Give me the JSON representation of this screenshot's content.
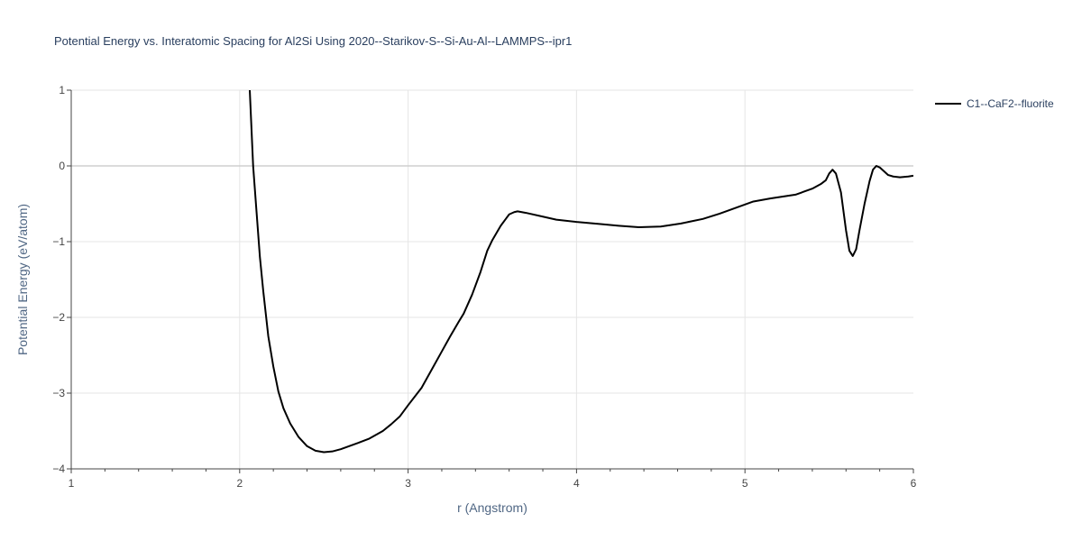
{
  "chart_data": {
    "type": "line",
    "title": "Potential Energy vs. Interatomic Spacing for Al2Si Using 2020--Starikov-S--Si-Au-Al--LAMMPS--ipr1",
    "xlabel": "r (Angstrom)",
    "ylabel": "Potential Energy (eV/atom)",
    "xlim": [
      1,
      6
    ],
    "ylim": [
      -4,
      1
    ],
    "xticks": [
      "1",
      "2",
      "3",
      "4",
      "5",
      "6"
    ],
    "yticks": [
      "1",
      "0",
      "−1",
      "−2",
      "−3",
      "−4"
    ],
    "grid": true,
    "legend_position": "top-right",
    "series": [
      {
        "name": "C1--CaF2--fluorite",
        "color": "#000000",
        "x": [
          2.06,
          2.08,
          2.1,
          2.12,
          2.14,
          2.17,
          2.2,
          2.23,
          2.26,
          2.3,
          2.35,
          2.4,
          2.45,
          2.5,
          2.55,
          2.6,
          2.65,
          2.7,
          2.77,
          2.85,
          2.9,
          2.95,
          3.0,
          3.08,
          3.15,
          3.2,
          3.25,
          3.3,
          3.33,
          3.38,
          3.43,
          3.47,
          3.5,
          3.55,
          3.58,
          3.6,
          3.63,
          3.65,
          3.7,
          3.8,
          3.88,
          4.0,
          4.15,
          4.25,
          4.37,
          4.5,
          4.62,
          4.75,
          4.85,
          4.95,
          5.05,
          5.15,
          5.3,
          5.4,
          5.45,
          5.48,
          5.5,
          5.52,
          5.54,
          5.57,
          5.6,
          5.62,
          5.64,
          5.66,
          5.68,
          5.71,
          5.74,
          5.76,
          5.78,
          5.8,
          5.82,
          5.85,
          5.88,
          5.92,
          5.97,
          6.0
        ],
        "y": [
          1.0,
          0.0,
          -0.6,
          -1.2,
          -1.65,
          -2.25,
          -2.65,
          -2.98,
          -3.2,
          -3.4,
          -3.58,
          -3.7,
          -3.76,
          -3.78,
          -3.77,
          -3.74,
          -3.7,
          -3.66,
          -3.6,
          -3.5,
          -3.41,
          -3.31,
          -3.16,
          -2.93,
          -2.65,
          -2.45,
          -2.25,
          -2.06,
          -1.95,
          -1.7,
          -1.4,
          -1.12,
          -0.98,
          -0.79,
          -0.7,
          -0.64,
          -0.61,
          -0.6,
          -0.62,
          -0.67,
          -0.71,
          -0.74,
          -0.77,
          -0.79,
          -0.81,
          -0.8,
          -0.76,
          -0.7,
          -0.63,
          -0.55,
          -0.47,
          -0.43,
          -0.38,
          -0.3,
          -0.24,
          -0.19,
          -0.1,
          -0.05,
          -0.1,
          -0.35,
          -0.85,
          -1.12,
          -1.19,
          -1.1,
          -0.85,
          -0.5,
          -0.2,
          -0.05,
          0.0,
          -0.02,
          -0.06,
          -0.12,
          -0.14,
          -0.15,
          -0.14,
          -0.13
        ]
      }
    ]
  }
}
